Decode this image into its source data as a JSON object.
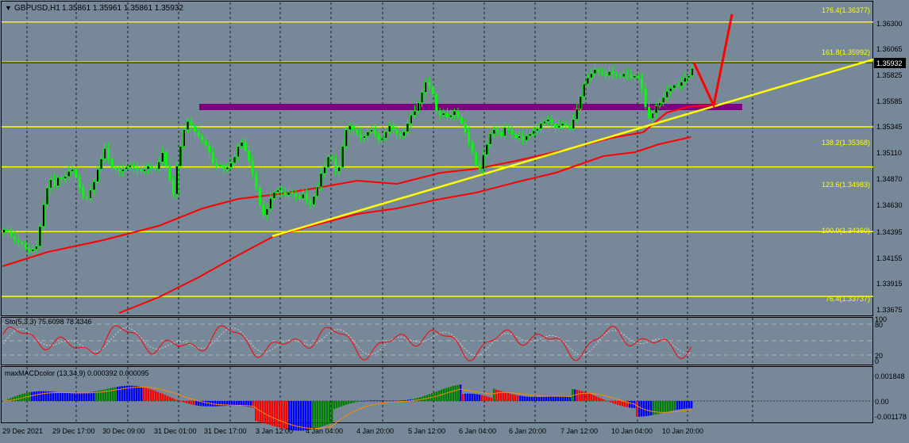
{
  "header": {
    "symbol_label": "GBPUSD,H1",
    "ohlc_label": "1.35861 1.35961 1.35861 1.35932"
  },
  "price_axis": {
    "ticks": [
      "1.36300",
      "1.36065",
      "1.35825",
      "1.35585",
      "1.35345",
      "1.35110",
      "1.34870",
      "1.34630",
      "1.34395",
      "1.34155",
      "1.33915",
      "1.33675"
    ],
    "current_price": "1.35932"
  },
  "fib_levels": [
    {
      "label": "176.4(1.36377)",
      "price": 1.36377
    },
    {
      "label": "161.8(1.35992)",
      "price": 1.35992
    },
    {
      "label": "138.2(1.35368)",
      "price": 1.35368
    },
    {
      "label": "123.6(1.34983)",
      "price": 1.34983
    },
    {
      "label": "100.0(1.34360)",
      "price": 1.3436
    },
    {
      "label": "76.4(1.33737)",
      "price": 1.33737
    }
  ],
  "time_axis": {
    "labels": [
      "29 Dec 2021",
      "29 Dec 17:00",
      "30 Dec 09:00",
      "31 Dec 01:00",
      "31 Dec 17:00",
      "3 Jan 12:00",
      "4 Jan 04:00",
      "4 Jan 20:00",
      "5 Jan 12:00",
      "6 Jan 04:00",
      "6 Jan 20:00",
      "7 Jan 12:00",
      "10 Jan 04:00",
      "10 Jan 20:00"
    ]
  },
  "stochastic": {
    "label": "Sto(5,3,3) 75.6098 78.4346",
    "scale": [
      "100",
      "80",
      "20",
      "0"
    ]
  },
  "macd": {
    "label": "maxMACDcolor (13,34,9) 0.000392 0.000095",
    "scale": [
      "0.001848",
      "0.00",
      "-0.001178"
    ]
  },
  "colors": {
    "background": "#778899",
    "bull_candle": "#00ff00",
    "fib_line": "#ffff00",
    "trendline": "#ffff00",
    "moving_average": "#ff0000",
    "resistance_zone": "#800080",
    "projection_arrow": "#ff0000",
    "macd_up": "#008000",
    "macd_down": "#ff0000",
    "macd_blue": "#0000ff"
  },
  "chart_data": {
    "type": "candlestick",
    "symbol": "GBPUSD",
    "timeframe": "H1",
    "ylim": [
      1.336,
      1.3655
    ],
    "closes": [
      1.3438,
      1.3436,
      1.3432,
      1.3428,
      1.3426,
      1.3424,
      1.342,
      1.3417,
      1.3419,
      1.3422,
      1.3441,
      1.3462,
      1.3478,
      1.3486,
      1.348,
      1.3488,
      1.3487,
      1.3489,
      1.3494,
      1.3496,
      1.3488,
      1.3478,
      1.3469,
      1.3468,
      1.3476,
      1.3484,
      1.3496,
      1.3506,
      1.3516,
      1.3506,
      1.3498,
      1.3496,
      1.3494,
      1.3496,
      1.3498,
      1.35,
      1.3498,
      1.3496,
      1.3494,
      1.3496,
      1.3499,
      1.3497,
      1.3496,
      1.3503,
      1.3512,
      1.3499,
      1.3486,
      1.3472,
      1.3499,
      1.3518,
      1.3534,
      1.3542,
      1.3538,
      1.3532,
      1.3528,
      1.3524,
      1.3519,
      1.3512,
      1.3502,
      1.3499,
      1.35,
      1.3496,
      1.3498,
      1.3502,
      1.3508,
      1.3518,
      1.3522,
      1.3514,
      1.3504,
      1.3492,
      1.3478,
      1.3462,
      1.3452,
      1.3458,
      1.3468,
      1.3474,
      1.3476,
      1.3474,
      1.3471,
      1.3474,
      1.3473,
      1.347,
      1.3468,
      1.3472,
      1.3466,
      1.3462,
      1.347,
      1.3479,
      1.3492,
      1.3498,
      1.3508,
      1.3506,
      1.3494,
      1.3498,
      1.3518,
      1.3534,
      1.3538,
      1.3534,
      1.353,
      1.3526,
      1.3528,
      1.3532,
      1.3534,
      1.353,
      1.3524,
      1.3526,
      1.3532,
      1.3538,
      1.3534,
      1.353,
      1.3528,
      1.3532,
      1.354,
      1.3548,
      1.3552,
      1.356,
      1.357,
      1.358,
      1.3575,
      1.3568,
      1.3552,
      1.3548,
      1.355,
      1.3546,
      1.3548,
      1.3552,
      1.3546,
      1.354,
      1.3532,
      1.3522,
      1.3512,
      1.35,
      1.3496,
      1.351,
      1.352,
      1.353,
      1.3534,
      1.3532,
      1.3528,
      1.3536,
      1.3534,
      1.353,
      1.3526,
      1.3528,
      1.3524,
      1.3528,
      1.353,
      1.3533,
      1.3535,
      1.354,
      1.3542,
      1.3544,
      1.354,
      1.3536,
      1.3538,
      1.354,
      1.3538,
      1.3535,
      1.3544,
      1.3554,
      1.3566,
      1.3578,
      1.3584,
      1.3588,
      1.3592,
      1.359,
      1.3588,
      1.3586,
      1.359,
      1.3588,
      1.3586,
      1.3585,
      1.3588,
      1.3587,
      1.3584,
      1.3586,
      1.3584,
      1.3574,
      1.3556,
      1.3545,
      1.355,
      1.3557,
      1.356,
      1.3565,
      1.3571,
      1.3574,
      1.3577,
      1.3576,
      1.358,
      1.3584,
      1.3586,
      1.3593
    ]
  }
}
